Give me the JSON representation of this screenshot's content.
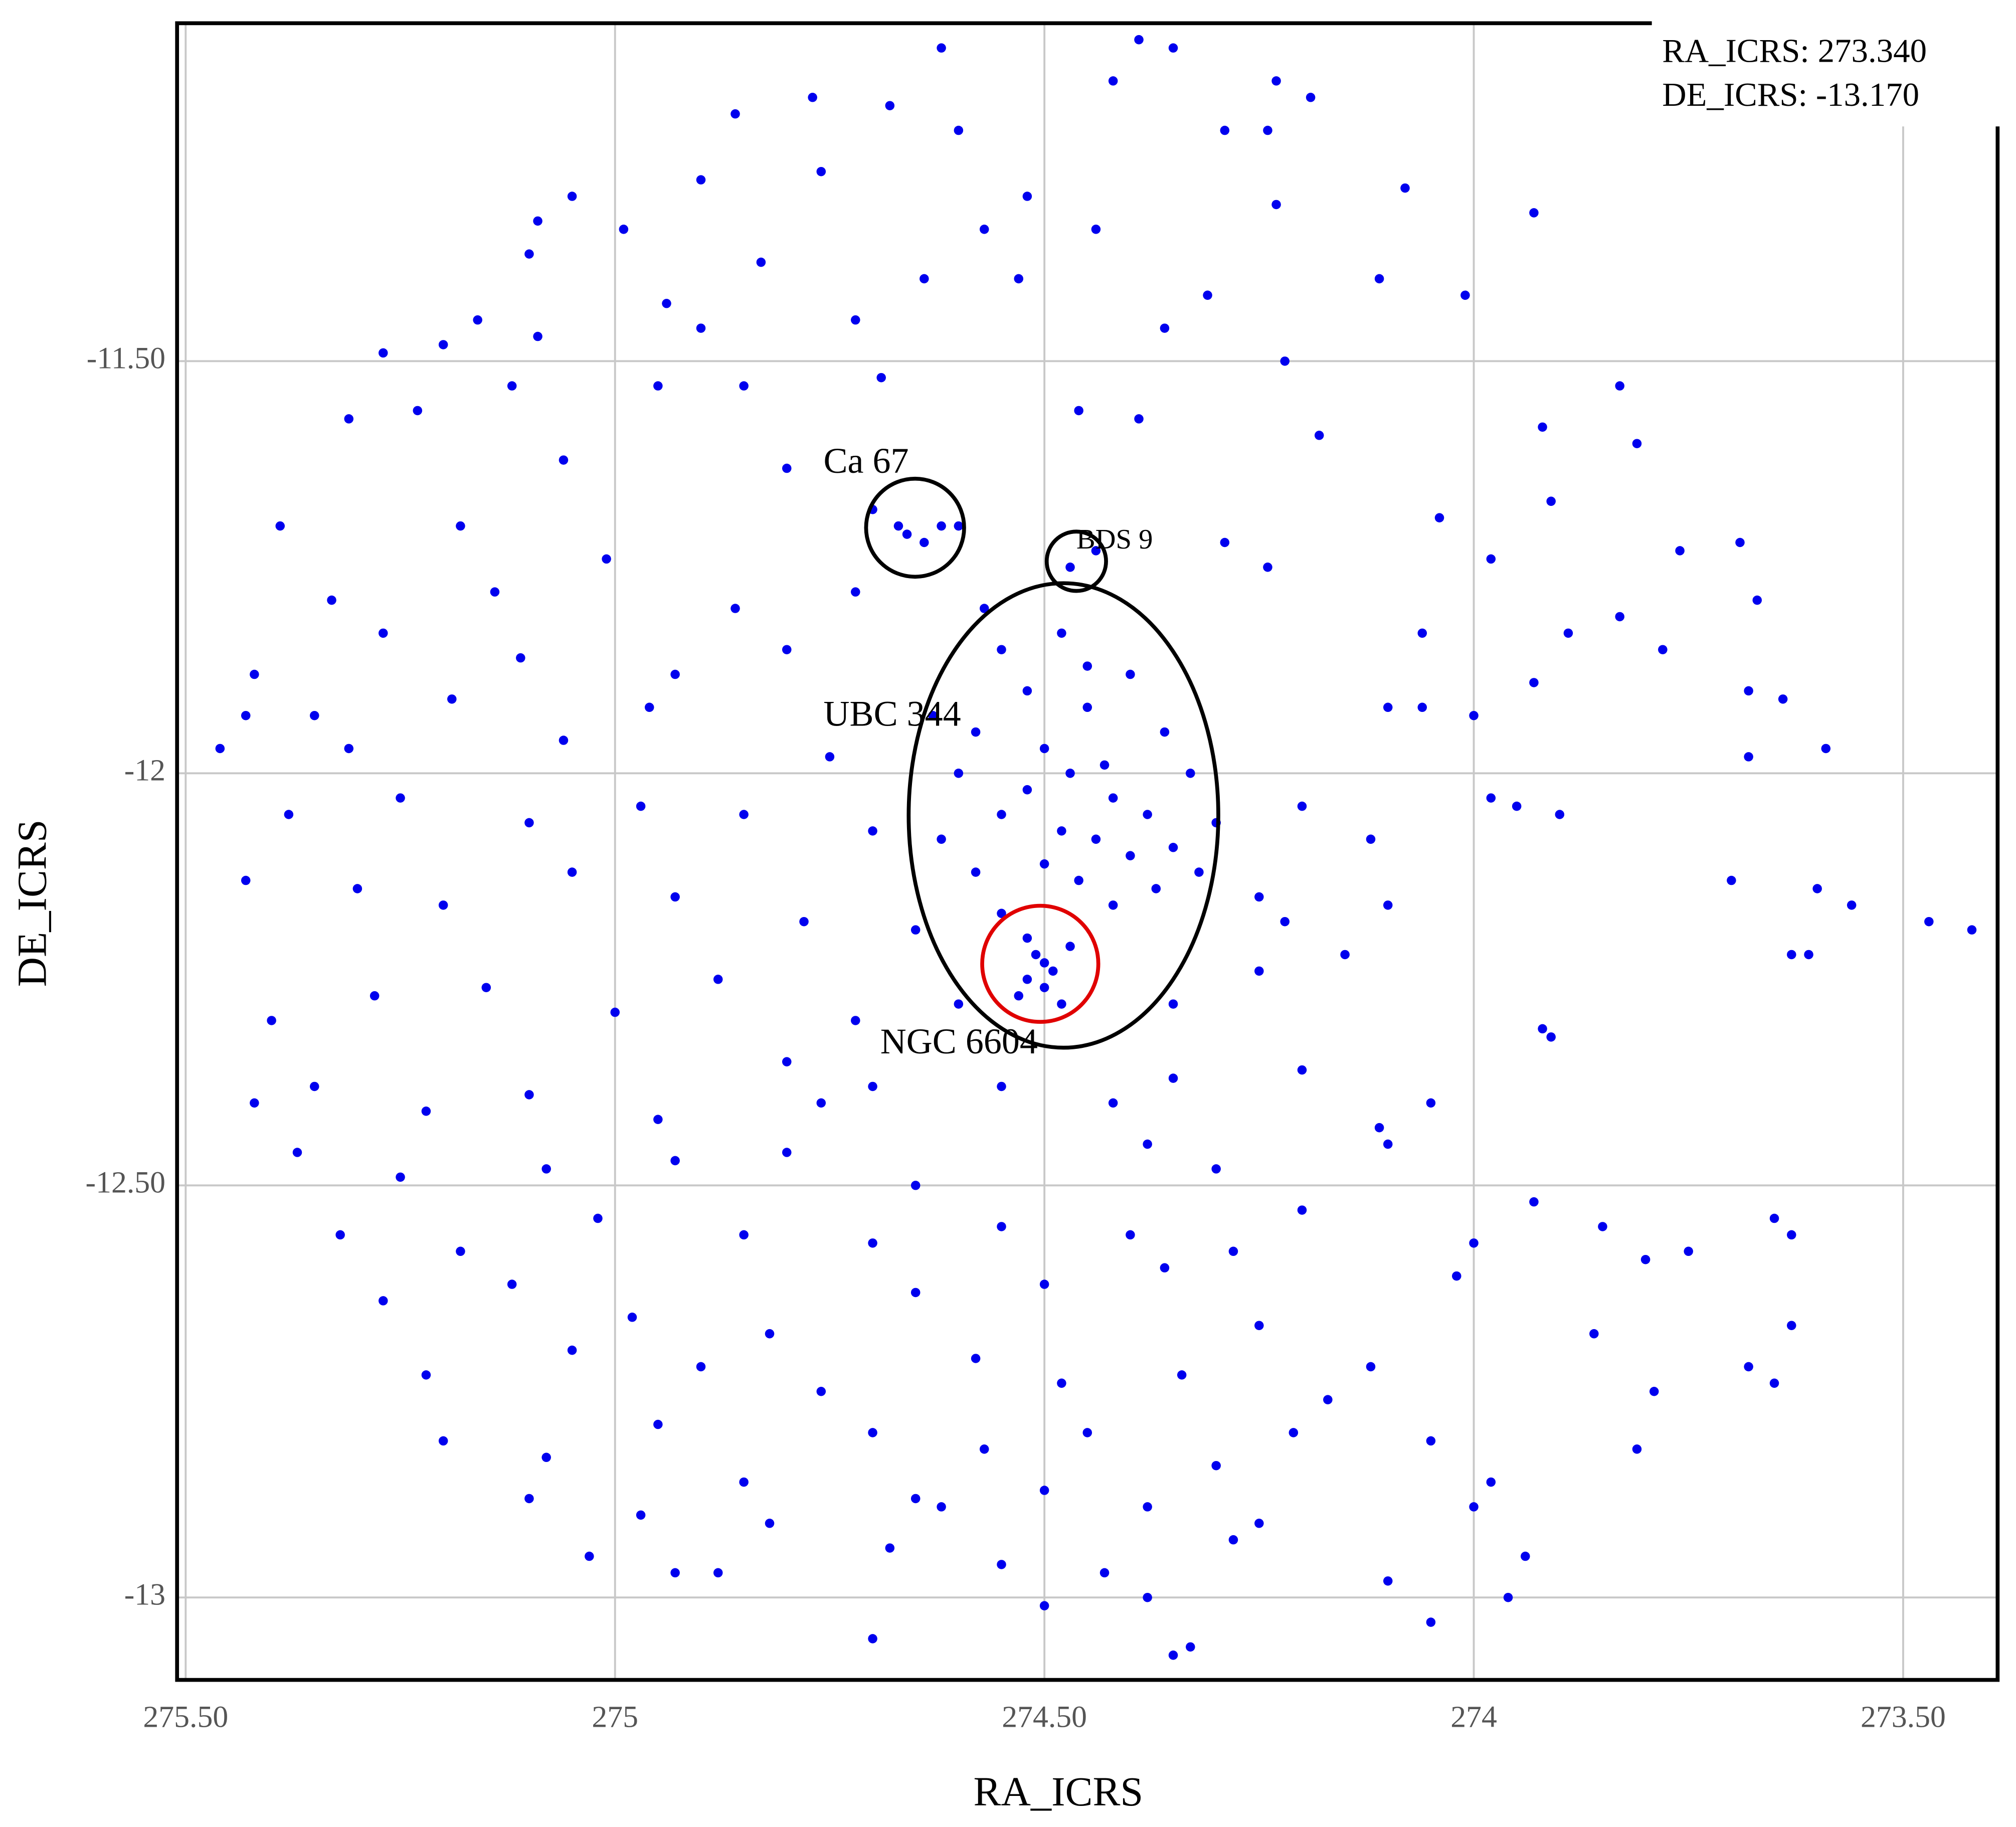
{
  "chart_data": {
    "type": "scatter",
    "x_label": "RA_ICRS",
    "y_label": "DE_ICRS",
    "annotations": [
      "Ca 67",
      "BDS 9",
      "UBC 344",
      "NGC 6604"
    ],
    "readout": [
      "RA_ICRS: 273.340",
      "DE_ICRS: -13.170"
    ],
    "color": "#0000ee",
    "grid": true,
    "xlim": [
      275.51,
      273.39
    ],
    "ylim": [
      -13.1,
      -11.09
    ],
    "xticks": [
      {
        "value": 275.5,
        "label": "275.50"
      },
      275,
      {
        "value": 274.5,
        "label": "274.50"
      },
      274,
      {
        "value": 273.5,
        "label": "273.50"
      }
    ],
    "yticks": [
      {
        "value": -11.5,
        "label": "-11.50"
      },
      -12,
      {
        "value": -12.5,
        "label": "-12.50"
      },
      -13
    ],
    "x": [
      274.62,
      274.39,
      274.35,
      274.42,
      274.23,
      274.19,
      274.77,
      274.68,
      274.86,
      274.6,
      274.29,
      274.24,
      274.76,
      274.9,
      275.05,
      274.52,
      274.08,
      273.93,
      274.23,
      275.09,
      274.99,
      274.57,
      274.44,
      275.1,
      274.83,
      274.64,
      274.53,
      274.11,
      274.01,
      274.31,
      274.94,
      274.72,
      275.16,
      274.36,
      275.09,
      275.2,
      274.9,
      275.27,
      274.22,
      275.31,
      275.23,
      275.12,
      274.95,
      274.85,
      274.69,
      274.46,
      274.39,
      274.18,
      273.92,
      273.83,
      273.81,
      273.91,
      275.39,
      275.18,
      275.06,
      274.8,
      274.67,
      274.64,
      274.62,
      274.66,
      274.6,
      274.7,
      274.47,
      274.44,
      274.04,
      273.98,
      273.76,
      273.69,
      273.67,
      273.83,
      274.29,
      274.24,
      275.33,
      275.14,
      275.01,
      274.86,
      274.72,
      274.57,
      274.06,
      273.89,
      273.78,
      275.42,
      275.27,
      275.11,
      274.93,
      274.8,
      273.93,
      273.68,
      273.64,
      275.43,
      275.35,
      275.19,
      274.96,
      274.1,
      274.06,
      274.0,
      275.31,
      275.46,
      275.06,
      274.75,
      273.59,
      273.68,
      274.55,
      274.48,
      274.4,
      274.52,
      274.45,
      274.58,
      274.5,
      274.43,
      274.47,
      274.52,
      274.42,
      274.38,
      274.55,
      274.48,
      274.44,
      274.35,
      274.4,
      274.5,
      274.58,
      274.46,
      274.37,
      274.42,
      274.55,
      274.62,
      274.33,
      274.32,
      274.3,
      274.6,
      274.63,
      274.36,
      274.45,
      274.52,
      274.51,
      274.49,
      274.52,
      274.5,
      274.47,
      274.53,
      274.48,
      274.5,
      275.38,
      275.25,
      275.1,
      274.97,
      274.85,
      274.7,
      274.2,
      274.12,
      273.98,
      273.95,
      273.9,
      273.7,
      273.6,
      273.56,
      273.42,
      273.47,
      273.61,
      273.63,
      275.43,
      275.3,
      275.2,
      275.05,
      274.93,
      274.78,
      274.65,
      274.25,
      274.22,
      274.1,
      275.4,
      275.28,
      275.15,
      275.0,
      274.88,
      274.72,
      274.6,
      274.35,
      274.25,
      274.15,
      273.92,
      273.91,
      275.42,
      275.35,
      275.22,
      275.1,
      274.95,
      274.8,
      274.76,
      274.7,
      274.55,
      274.42,
      274.35,
      274.2,
      274.05,
      274.11,
      275.37,
      275.25,
      275.08,
      274.93,
      274.8,
      274.65,
      274.38,
      274.3,
      274.1,
      273.93,
      275.32,
      275.18,
      275.02,
      274.85,
      274.7,
      274.55,
      274.4,
      274.28,
      274.2,
      274.0,
      273.85,
      273.8,
      273.75,
      273.65,
      273.63,
      275.27,
      275.12,
      274.98,
      274.82,
      274.65,
      274.5,
      274.36,
      274.25,
      274.02,
      273.86,
      273.63,
      275.22,
      275.05,
      274.9,
      274.76,
      274.58,
      274.48,
      274.34,
      274.17,
      274.12,
      273.79,
      273.68,
      273.65,
      275.2,
      275.08,
      274.95,
      274.85,
      274.7,
      274.57,
      274.45,
      274.3,
      274.21,
      274.05,
      273.81,
      275.1,
      274.97,
      274.82,
      274.65,
      274.5,
      274.38,
      274.25,
      274.0,
      273.98,
      275.03,
      274.88,
      274.68,
      274.55,
      274.43,
      274.28,
      273.94,
      274.93,
      274.7,
      274.5,
      274.38,
      274.35,
      274.33,
      274.1,
      274.05,
      273.96,
      274.62
    ],
    "values": [
      -11.12,
      -11.11,
      -11.12,
      -11.16,
      -11.16,
      -11.18,
      -11.18,
      -11.19,
      -11.2,
      -11.22,
      -11.22,
      -11.22,
      -11.27,
      -11.28,
      -11.3,
      -11.3,
      -11.29,
      -11.32,
      -11.31,
      -11.33,
      -11.34,
      -11.34,
      -11.34,
      -11.37,
      -11.38,
      -11.4,
      -11.4,
      -11.4,
      -11.42,
      -11.42,
      -11.43,
      -11.45,
      -11.45,
      -11.46,
      -11.47,
      -11.48,
      -11.46,
      -11.49,
      -11.5,
      -11.57,
      -11.56,
      -11.53,
      -11.53,
      -11.53,
      -11.52,
      -11.56,
      -11.57,
      -11.59,
      -11.58,
      -11.53,
      -11.6,
      -11.67,
      -11.7,
      -11.7,
      -11.62,
      -11.63,
      -11.7,
      -11.72,
      -11.7,
      -11.71,
      -11.7,
      -11.68,
      -11.75,
      -11.73,
      -11.69,
      -11.74,
      -11.73,
      -11.72,
      -11.79,
      -11.81,
      -11.72,
      -11.75,
      -11.79,
      -11.78,
      -11.74,
      -11.8,
      -11.78,
      -11.8,
      -11.83,
      -11.83,
      -11.85,
      -11.88,
      -11.83,
      -11.86,
      -11.88,
      -11.85,
      -11.89,
      -11.9,
      -11.91,
      -11.93,
      -11.93,
      -11.91,
      -11.92,
      -11.92,
      -11.92,
      -11.93,
      -11.97,
      -11.97,
      -11.96,
      -11.98,
      -11.97,
      -11.98,
      -11.85,
      -11.83,
      -11.88,
      -11.9,
      -11.92,
      -11.95,
      -11.97,
      -11.99,
      -12.0,
      -12.02,
      -12.03,
      -12.05,
      -12.05,
      -12.07,
      -12.08,
      -12.09,
      -12.1,
      -12.11,
      -12.12,
      -12.13,
      -12.14,
      -12.16,
      -12.17,
      -12.08,
      -12.0,
      -12.12,
      -12.06,
      -12.0,
      -11.93,
      -11.95,
      -11.87,
      -12.2,
      -12.22,
      -12.24,
      -12.25,
      -12.26,
      -12.21,
      -12.27,
      -12.28,
      -12.23,
      -12.05,
      -12.03,
      -12.06,
      -12.04,
      -12.05,
      -12.07,
      -12.04,
      -12.08,
      -12.03,
      -12.04,
      -12.05,
      -12.13,
      -12.14,
      -12.16,
      -12.19,
      -12.18,
      -12.22,
      -12.22,
      -12.13,
      -12.14,
      -12.16,
      -12.12,
      -12.15,
      -12.18,
      -12.19,
      -12.15,
      -12.18,
      -12.16,
      -12.3,
      -12.27,
      -12.26,
      -12.29,
      -12.25,
      -12.3,
      -12.28,
      -12.28,
      -12.24,
      -12.22,
      -12.31,
      -12.32,
      -12.4,
      -12.38,
      -12.41,
      -12.39,
      -12.42,
      -12.35,
      -12.4,
      -12.38,
      -12.38,
      -12.4,
      -12.37,
      -12.36,
      -12.4,
      -12.43,
      -12.46,
      -12.49,
      -12.48,
      -12.47,
      -12.46,
      -12.5,
      -12.45,
      -12.48,
      -12.45,
      -12.52,
      -12.56,
      -12.58,
      -12.54,
      -12.56,
      -12.57,
      -12.55,
      -12.56,
      -12.58,
      -12.53,
      -12.57,
      -12.55,
      -12.59,
      -12.58,
      -12.54,
      -12.56,
      -12.64,
      -12.62,
      -12.66,
      -12.68,
      -12.63,
      -12.62,
      -12.6,
      -12.67,
      -12.61,
      -12.68,
      -12.67,
      -12.73,
      -12.7,
      -12.72,
      -12.75,
      -12.71,
      -12.74,
      -12.73,
      -12.76,
      -12.72,
      -12.75,
      -12.72,
      -12.74,
      -12.81,
      -12.83,
      -12.79,
      -12.86,
      -12.8,
      -12.82,
      -12.8,
      -12.84,
      -12.8,
      -12.81,
      -12.82,
      -12.88,
      -12.9,
      -12.91,
      -12.88,
      -12.87,
      -12.89,
      -12.91,
      -12.89,
      -12.86,
      -12.95,
      -12.97,
      -12.94,
      -12.96,
      -12.97,
      -12.93,
      -12.95,
      -12.97,
      -13.05,
      -13.01,
      -13.0,
      -13.07,
      -13.06,
      -12.98,
      -13.03,
      -13.0,
      -12.89
    ]
  }
}
